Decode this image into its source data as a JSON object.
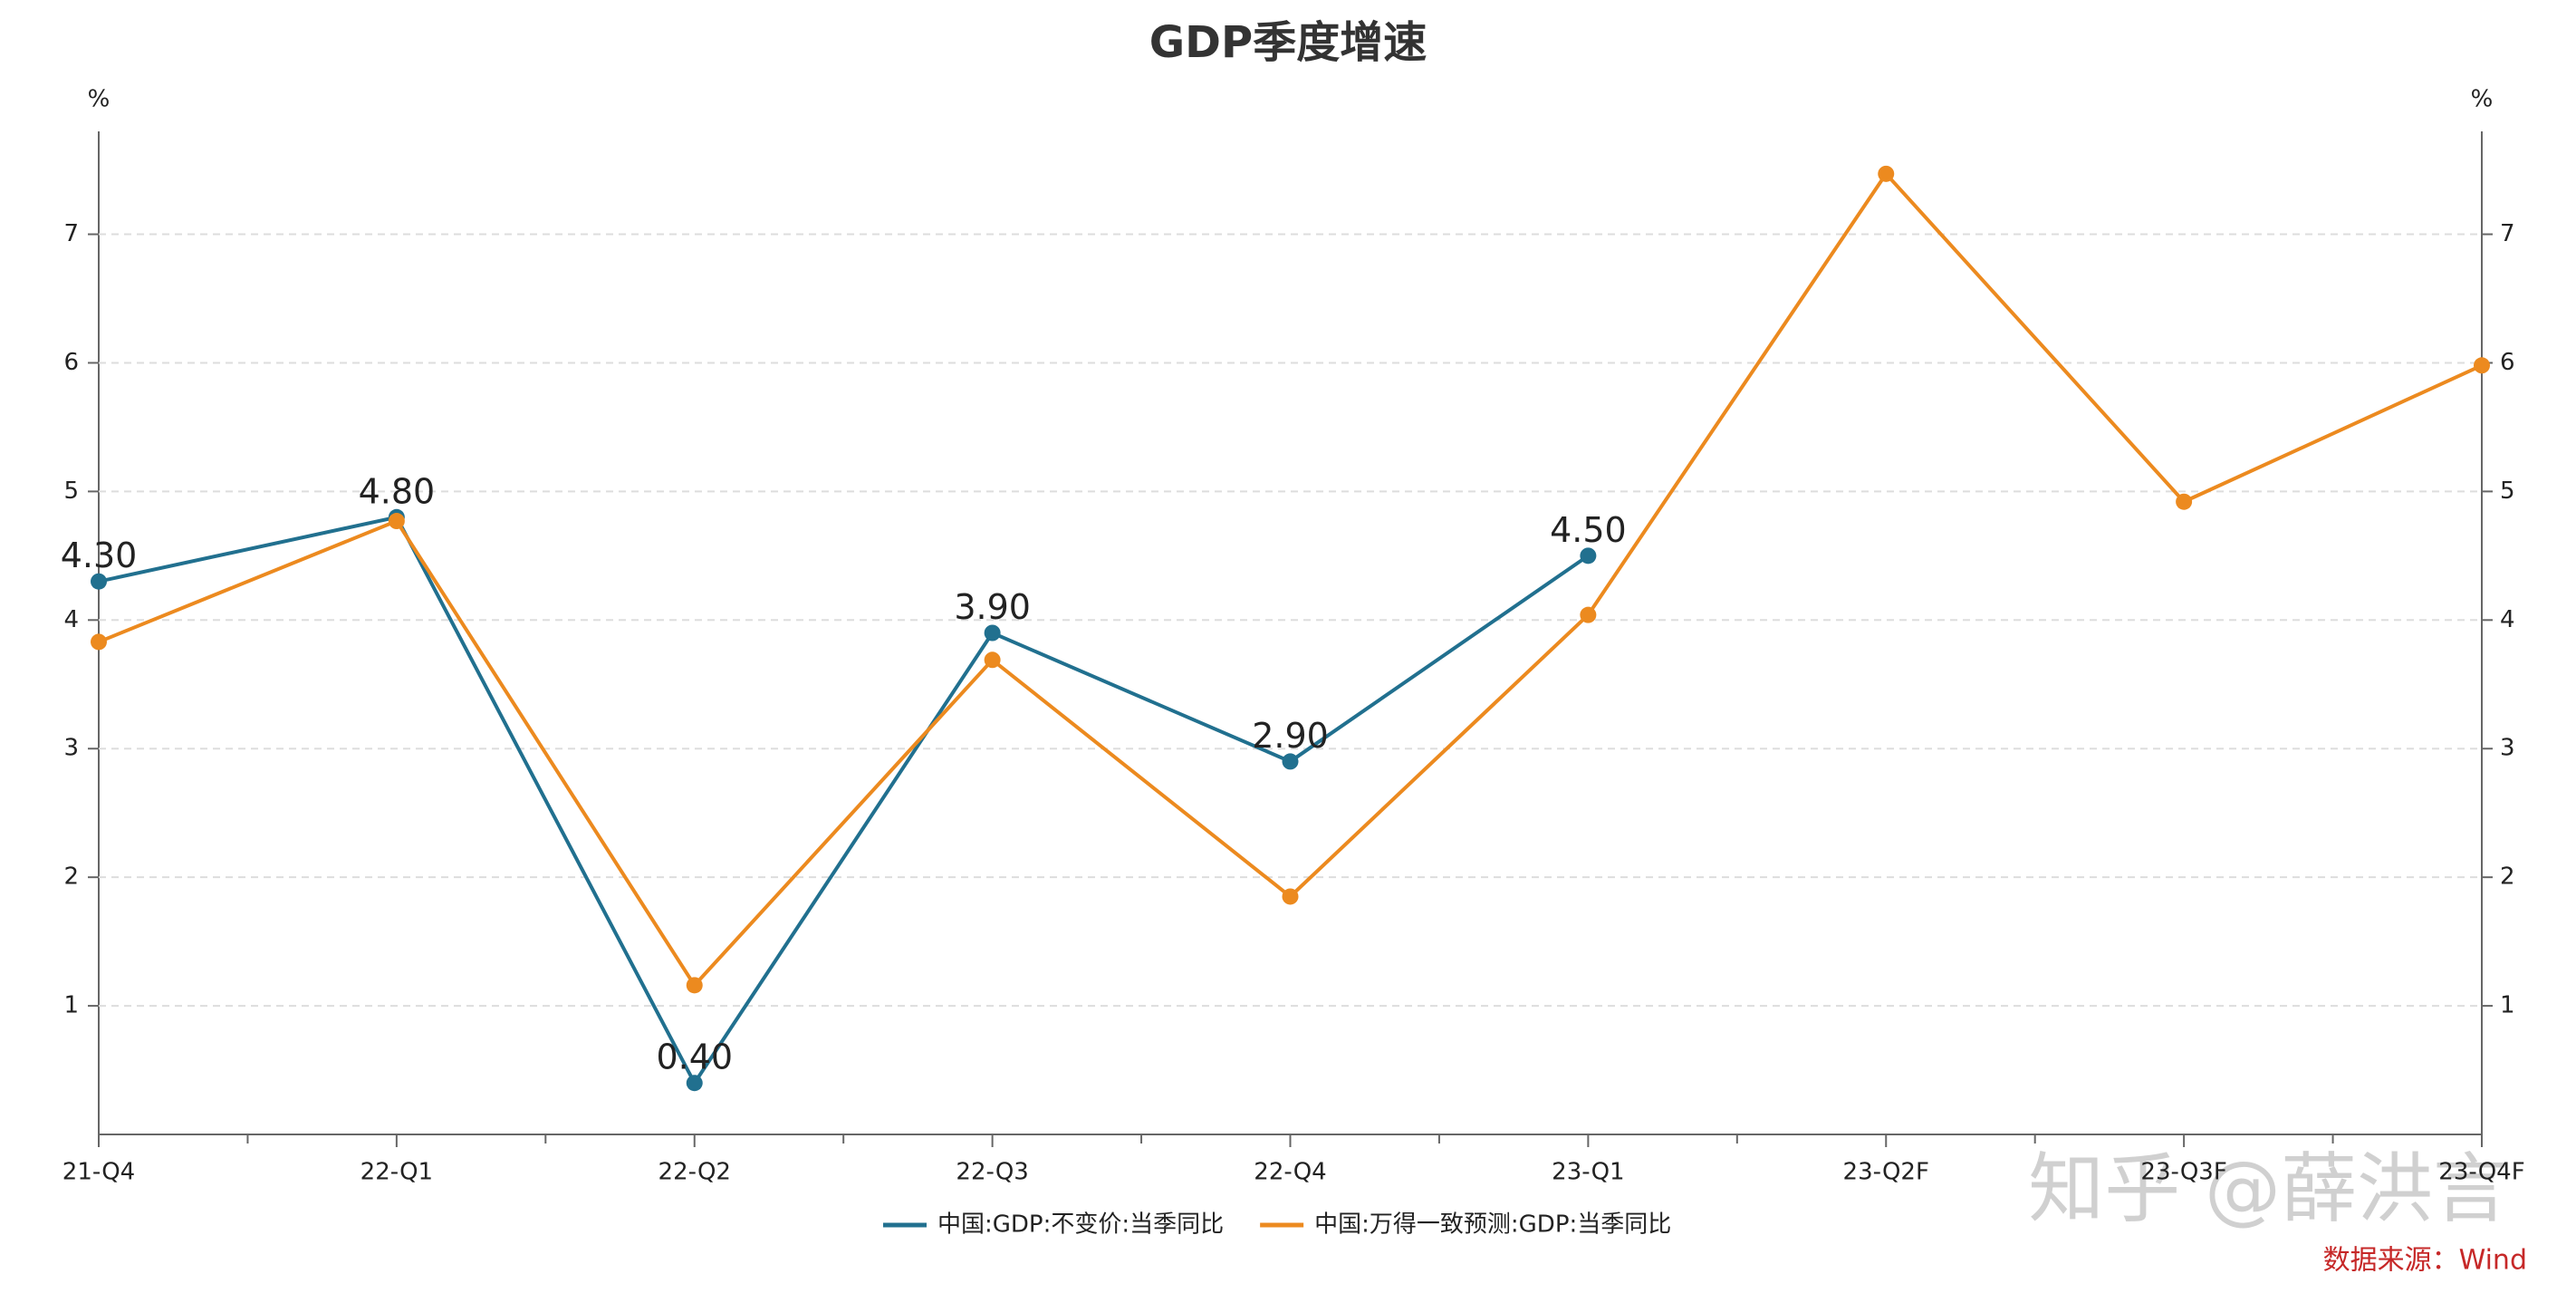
{
  "chart_data": {
    "type": "line",
    "title": "GDP季度增速",
    "y_unit": "%",
    "y2_unit": "%",
    "categories": [
      "21-Q4",
      "22-Q1",
      "22-Q2",
      "22-Q3",
      "22-Q4",
      "23-Q1",
      "23-Q2F",
      "23-Q3F",
      "23-Q4F"
    ],
    "series": [
      {
        "name": "中国:GDP:不变价:当季同比",
        "color": "#21708f",
        "values": [
          4.3,
          4.8,
          0.4,
          3.9,
          2.9,
          4.5,
          null,
          null,
          null
        ],
        "value_labels": [
          "4.30",
          "4.80",
          "0.40",
          "3.90",
          "2.90",
          "4.50",
          null,
          null,
          null
        ]
      },
      {
        "name": "中国:万得一致预测:GDP:当季同比",
        "color": "#ec8a1f",
        "axis": "y2",
        "values": [
          3.83,
          4.77,
          1.16,
          3.69,
          1.85,
          4.04,
          7.47,
          4.92,
          5.98
        ],
        "value_labels": [
          null,
          null,
          null,
          null,
          null,
          null,
          null,
          null,
          null
        ]
      }
    ],
    "ylim": [
      0,
      7.8
    ],
    "yticks": [
      1,
      2,
      3,
      4,
      5,
      6,
      7
    ],
    "y2lim": [
      0,
      7.8
    ],
    "y2ticks": [
      1,
      2,
      3,
      4,
      5,
      6,
      7
    ],
    "grid": true,
    "legend": "bottom",
    "source": "数据来源：Wind",
    "watermark": "知乎 @薛洪言"
  }
}
